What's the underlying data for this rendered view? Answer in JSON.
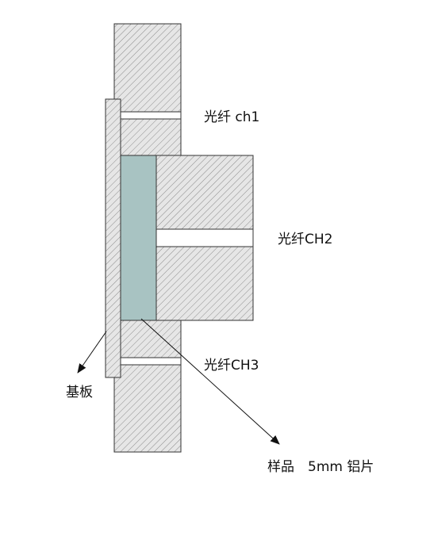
{
  "labels": {
    "fiber_ch1": "光纤 ch1",
    "fiber_ch2": "光纤CH2",
    "fiber_ch3": "光纤CH3",
    "substrate": "基板",
    "sample": "样品",
    "sample_spec": "5mm 铝片"
  },
  "colors": {
    "hatch_fill": "#e6e6e6",
    "hatch_line": "#8c8c8c",
    "sample_fill": "#a8c3c2",
    "outline": "#333333"
  }
}
